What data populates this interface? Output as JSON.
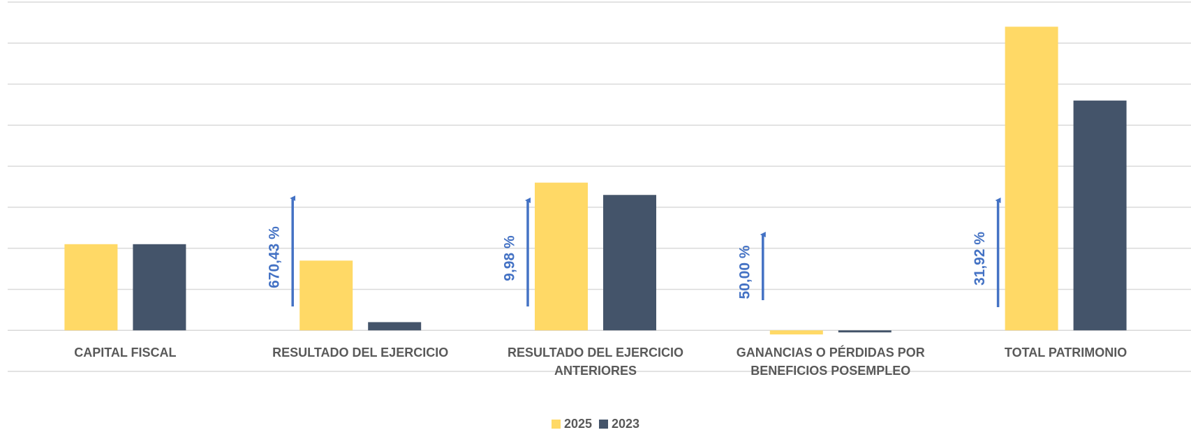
{
  "chart_data": {
    "type": "bar",
    "categories": [
      "CAPITAL FISCAL",
      "RESULTADO DEL EJERCICIO",
      "RESULTADO DEL EJERCICIO ANTERIORES",
      "GANANCIAS O PÉRDIDAS POR BENEFICIOS POSEMPLEO",
      "TOTAL PATRIMONIO"
    ],
    "series": [
      {
        "name": "2025",
        "color": "#ffd966",
        "values": [
          2.1,
          1.7,
          3.6,
          -0.1,
          7.4
        ]
      },
      {
        "name": "2023",
        "color": "#44546a",
        "values": [
          2.1,
          0.2,
          3.3,
          -0.05,
          5.6
        ]
      }
    ],
    "annotations": [
      "670,43 %",
      "9,98 %",
      "50,00 %",
      "31,92 %"
    ],
    "annotation_color": "#4472c4",
    "ylim": [
      -1,
      8
    ],
    "yticks": [
      -1,
      0,
      1,
      2,
      3,
      4,
      5,
      6,
      7,
      8
    ],
    "grid": true
  }
}
